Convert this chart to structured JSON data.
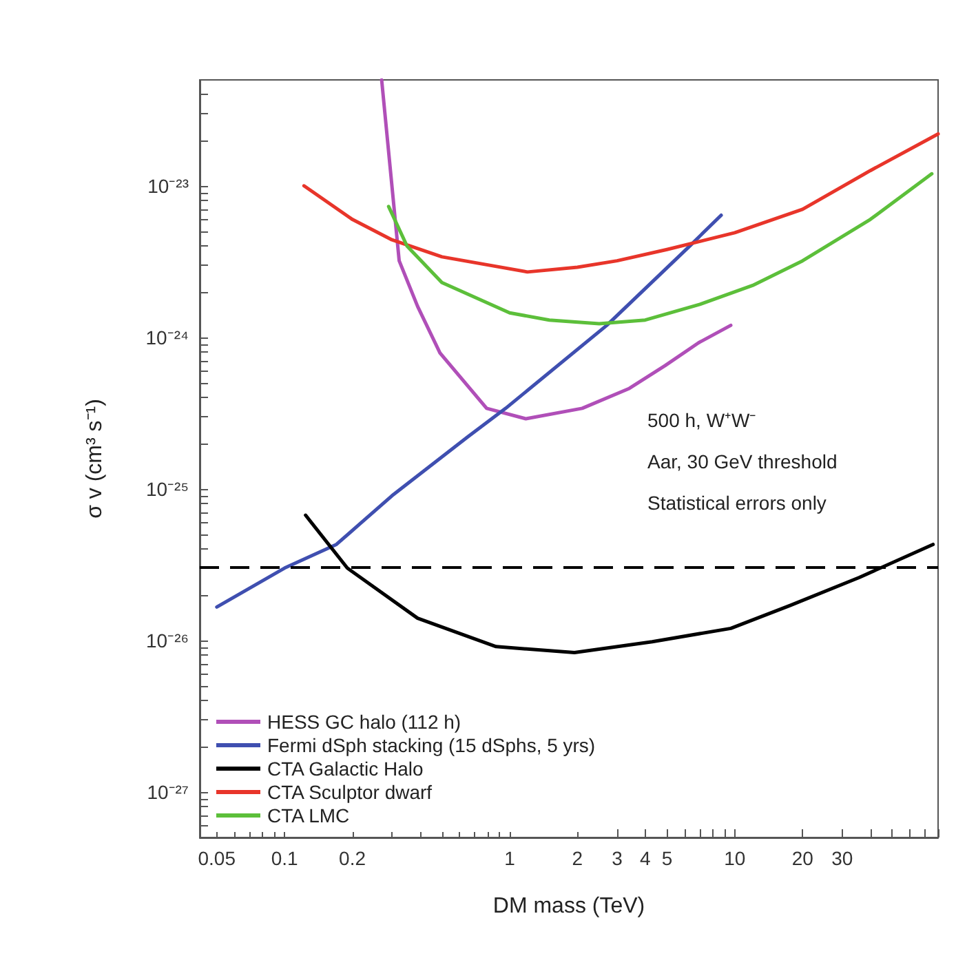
{
  "chart_data": {
    "type": "line",
    "xlabel": "DM mass (TeV)",
    "ylabel": "σ v (cm³ s⁻¹)",
    "log": "xy",
    "xlim": [
      0.042,
      80
    ],
    "ylim": [
      5e-28,
      5e-23
    ],
    "xticks": [
      0.05,
      {
        "value": 0.06,
        "label": null
      },
      {
        "value": 0.07,
        "label": null
      },
      {
        "value": 0.08,
        "label": null
      },
      {
        "value": 0.09,
        "label": null
      },
      0.1,
      0.2,
      {
        "value": 0.3,
        "label": null
      },
      {
        "value": 0.4,
        "label": null
      },
      {
        "value": 0.5,
        "label": null
      },
      {
        "value": 0.6,
        "label": null
      },
      {
        "value": 0.7,
        "label": null
      },
      {
        "value": 0.8,
        "label": null
      },
      {
        "value": 0.9,
        "label": null
      },
      1,
      2,
      3,
      4,
      5,
      {
        "value": 6,
        "label": null
      },
      {
        "value": 7,
        "label": null
      },
      {
        "value": 8,
        "label": null
      },
      {
        "value": 9,
        "label": null
      },
      10,
      20,
      30,
      {
        "value": 40,
        "label": null
      },
      {
        "value": 50,
        "label": null
      },
      {
        "value": 60,
        "label": null
      },
      {
        "value": 70,
        "label": null
      },
      {
        "value": 80,
        "label": null
      }
    ],
    "yticks": [
      {
        "value": 6e-28,
        "label": null
      },
      {
        "value": 7e-28,
        "label": null
      },
      {
        "value": 8e-28,
        "label": null
      },
      {
        "value": 9e-28,
        "label": null
      },
      {
        "value": 1e-27,
        "label": "10⁻²⁷"
      },
      {
        "value": 2e-27,
        "label": null
      },
      {
        "value": 3e-27,
        "label": null
      },
      {
        "value": 4e-27,
        "label": null
      },
      {
        "value": 5e-27,
        "label": null
      },
      {
        "value": 6e-27,
        "label": null
      },
      {
        "value": 7e-27,
        "label": null
      },
      {
        "value": 8e-27,
        "label": null
      },
      {
        "value": 9e-27,
        "label": null
      },
      {
        "value": 1e-26,
        "label": "10⁻²⁶"
      },
      {
        "value": 2e-26,
        "label": null
      },
      {
        "value": 3e-26,
        "label": null
      },
      {
        "value": 4e-26,
        "label": null
      },
      {
        "value": 5e-26,
        "label": null
      },
      {
        "value": 6e-26,
        "label": null
      },
      {
        "value": 7e-26,
        "label": null
      },
      {
        "value": 8e-26,
        "label": null
      },
      {
        "value": 9e-26,
        "label": null
      },
      {
        "value": 1e-25,
        "label": "10⁻²⁵"
      },
      {
        "value": 2e-25,
        "label": null
      },
      {
        "value": 3e-25,
        "label": null
      },
      {
        "value": 4e-25,
        "label": null
      },
      {
        "value": 5e-25,
        "label": null
      },
      {
        "value": 6e-25,
        "label": null
      },
      {
        "value": 7e-25,
        "label": null
      },
      {
        "value": 8e-25,
        "label": null
      },
      {
        "value": 9e-25,
        "label": null
      },
      {
        "value": 1e-24,
        "label": "10⁻²⁴"
      },
      {
        "value": 2e-24,
        "label": null
      },
      {
        "value": 3e-24,
        "label": null
      },
      {
        "value": 4e-24,
        "label": null
      },
      {
        "value": 5e-24,
        "label": null
      },
      {
        "value": 6e-24,
        "label": null
      },
      {
        "value": 7e-24,
        "label": null
      },
      {
        "value": 8e-24,
        "label": null
      },
      {
        "value": 9e-24,
        "label": null
      },
      {
        "value": 1e-23,
        "label": "10⁻²³"
      },
      {
        "value": 2e-23,
        "label": null
      },
      {
        "value": 3e-23,
        "label": null
      },
      {
        "value": 4e-23,
        "label": null
      }
    ],
    "grid": false,
    "legend": "bottom left",
    "marker": "none",
    "line_style": "solid",
    "series": [
      {
        "name": "HESS GC halo (112 h)",
        "color": "#b04fb8",
        "x": [
          0.27,
          0.31,
          0.323,
          0.39,
          0.49,
          0.79,
          1.18,
          2.1,
          3.4,
          4.9,
          6.9,
          9.6
        ],
        "values": [
          5e-23,
          6e-24,
          3.2e-24,
          1.6e-24,
          7.9e-25,
          3.4e-25,
          2.9e-25,
          3.4e-25,
          4.6e-25,
          6.5e-25,
          9.2e-25,
          1.2e-24
        ]
      },
      {
        "name": "Fermi dSph stacking (15 dSphs, 5 yrs)",
        "color": "#3f4fb0",
        "x": [
          0.05,
          0.1,
          0.17,
          0.3,
          0.65,
          0.96,
          2.7,
          6.3,
          8.7
        ],
        "values": [
          1.66e-26,
          3e-26,
          4.3e-26,
          9e-26,
          2.2e-25,
          3.4e-25,
          1.2e-24,
          4e-24,
          6.4e-24
        ]
      },
      {
        "name": "CTA Galactic Halo",
        "color": "#000000",
        "x": [
          0.124,
          0.19,
          0.39,
          0.87,
          1.94,
          4.3,
          9.6,
          17.6,
          35.7,
          76
        ],
        "values": [
          6.7e-26,
          3e-26,
          1.4e-26,
          9.1e-27,
          8.3e-27,
          9.8e-27,
          1.2e-26,
          1.7e-26,
          2.6e-26,
          4.3e-26
        ]
      },
      {
        "name": "CTA Sculptor dwarf",
        "color": "#e8352a",
        "x": [
          0.122,
          0.2,
          0.3,
          0.5,
          1.2,
          2,
          3,
          5,
          10,
          20,
          40,
          80
        ],
        "values": [
          1e-23,
          6e-24,
          4.4e-24,
          3.4e-24,
          2.7e-24,
          2.9e-24,
          3.2e-24,
          3.8e-24,
          4.9e-24,
          7e-24,
          1.26e-23,
          2.2e-23
        ]
      },
      {
        "name": "CTA LMC",
        "color": "#5cbf3a",
        "x": [
          0.29,
          0.35,
          0.5,
          1,
          1.5,
          2.5,
          4,
          7,
          12,
          20,
          40,
          75
        ],
        "values": [
          7.3e-24,
          4e-24,
          2.3e-24,
          1.45e-24,
          1.3e-24,
          1.23e-24,
          1.3e-24,
          1.65e-24,
          2.2e-24,
          3.2e-24,
          6e-24,
          1.2e-23
        ]
      }
    ],
    "ref_lines": [
      {
        "axis": "y",
        "value": 3e-26,
        "color": "#000000",
        "line_style": "dashed"
      }
    ],
    "annotations": [
      "500 h, W⁺W⁻",
      "Aar, 30 GeV threshold",
      "Statistical errors only"
    ]
  }
}
